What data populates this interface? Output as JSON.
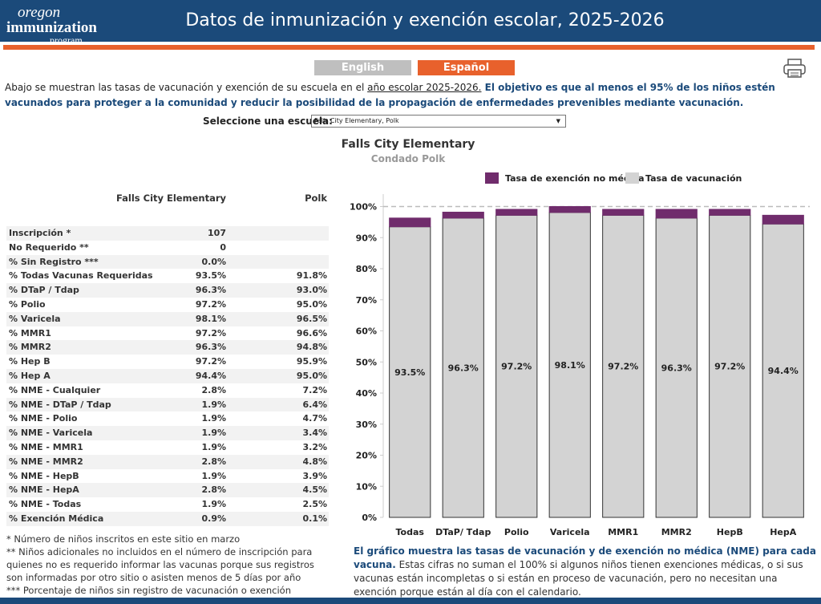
{
  "header": {
    "logo": [
      "oregon",
      "immunization",
      "program"
    ],
    "title": "Datos de inmunización y exención escolar, 2025-2026"
  },
  "languages": [
    "English",
    "Español"
  ],
  "intro": {
    "text": "Abajo se muestran las tasas de vacunación y exención de su escuela en el ",
    "link": "año escolar 2025-2026.",
    "highlight": " El objetivo es que al menos el 95% de los niños estén vacunados para proteger a la comunidad y reducir la posibilidad de la propagación de enfermedades prevenibles mediante vacunación."
  },
  "selector": {
    "label": "Seleccione una escuela:",
    "value": "Falls City Elementary, Polk"
  },
  "school": "Falls City Elementary",
  "county": "Condado Polk",
  "table": {
    "columns": [
      "Falls City Elementary",
      "Polk"
    ],
    "rows": [
      [
        "Inscripción *",
        "107"
      ],
      [
        "No Requerido **",
        "0"
      ],
      [
        "% Sin Registro ***",
        "0.0%"
      ],
      [
        "% Todas Vacunas Requeridas",
        "93.5%",
        "91.8%"
      ],
      [
        "% DTaP / Tdap",
        "96.3%",
        "93.0%"
      ],
      [
        "% Polio",
        "97.2%",
        "95.0%"
      ],
      [
        "% Varicela",
        "98.1%",
        "96.5%"
      ],
      [
        "% MMR1",
        "97.2%",
        "96.6%"
      ],
      [
        "% MMR2",
        "96.3%",
        "94.8%"
      ],
      [
        "% Hep B",
        "97.2%",
        "95.9%"
      ],
      [
        "% Hep A",
        "94.4%",
        "95.0%"
      ],
      [
        "% NME - Cualquier",
        "2.8%",
        "7.2%"
      ],
      [
        "% NME - DTaP / Tdap",
        "1.9%",
        "6.4%"
      ],
      [
        "% NME - Polio",
        "1.9%",
        "4.7%"
      ],
      [
        "% NME - Varicela",
        "1.9%",
        "3.4%"
      ],
      [
        "% NME - MMR1",
        "1.9%",
        "3.2%"
      ],
      [
        "% NME - MMR2",
        "2.8%",
        "4.8%"
      ],
      [
        "% NME - HepB",
        "1.9%",
        "3.9%"
      ],
      [
        "% NME - HepA",
        "2.8%",
        "4.5%"
      ],
      [
        "% NME - Todas",
        "1.9%",
        "2.5%"
      ],
      [
        "% Exención Médica",
        "0.9%",
        "0.1%"
      ]
    ]
  },
  "footnotes": [
    "* Número de niños inscritos en este sitio en marzo",
    "** Niños adicionales no incluidos en el número de inscripción para quienes no es requerido informar las vacunas porque sus registros son informadas por otro sitio o asisten menos de 5 días por año",
    "*** Porcentaje de niños sin registro de vacunación o exención"
  ],
  "chart_data": {
    "type": "stacked_bar",
    "categories": [
      "Todas",
      "DTaP/ Tdap",
      "Polio",
      "Varicela",
      "MMR1",
      "MMR2",
      "HepB",
      "HepA"
    ],
    "series": [
      {
        "name": "Tasa de vacunación",
        "color": "#d3d3d3",
        "values": [
          93.5,
          96.3,
          97.2,
          98.1,
          97.2,
          96.3,
          97.2,
          94.4
        ],
        "value_labels": [
          "93.5%",
          "96.3%",
          "97.2%",
          "98.1%",
          "97.2%",
          "96.3%",
          "97.2%",
          "94.4%"
        ]
      },
      {
        "name": "Tasa de exención no médica",
        "color": "#702c6c",
        "values": [
          2.8,
          1.9,
          1.9,
          1.9,
          1.9,
          2.8,
          1.9,
          2.8
        ]
      }
    ],
    "legend_order": [
      1,
      0
    ],
    "ylim": [
      0,
      104
    ],
    "yticks": [
      {
        "value": 0,
        "label": "0%"
      },
      {
        "value": 10,
        "label": "10%"
      },
      {
        "value": 20,
        "label": "20%"
      },
      {
        "value": 30,
        "label": "30%"
      },
      {
        "value": 40,
        "label": "40%"
      },
      {
        "value": 50,
        "label": "50%"
      },
      {
        "value": 60,
        "label": "60%"
      },
      {
        "value": 70,
        "label": "70%"
      },
      {
        "value": 80,
        "label": "80%"
      },
      {
        "value": 90,
        "label": "90%"
      },
      {
        "value": 100,
        "label": "100%"
      }
    ],
    "reference_line": 100,
    "grid": false,
    "caption": {
      "bold": "El gráfico muestra las tasas de vacunación y de exención no médica (NME) para cada vacuna.",
      "text": " Estas cifras no suman el 100% si algunos niños tienen exenciones médicas, o si sus vacunas están incompletas o si están en proceso de vacunación, pero no necesitan una exención porque están al día con el calendario."
    }
  }
}
